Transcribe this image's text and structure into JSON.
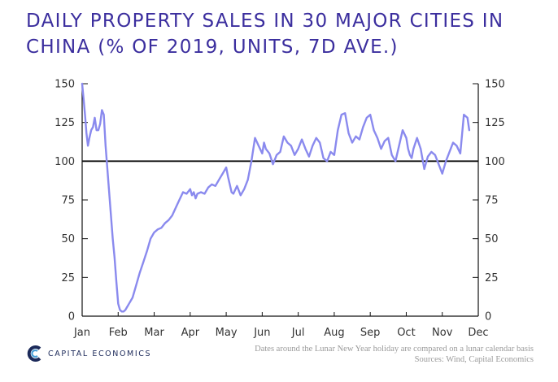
{
  "chart_data": {
    "type": "line",
    "title": "DAILY PROPERTY SALES IN 30 MAJOR CITIES IN CHINA (% OF 2019, UNITS, 7D AVE.)",
    "xlabel": "",
    "ylabel": "",
    "categories": [
      "Jan",
      "Feb",
      "Mar",
      "Apr",
      "May",
      "Jun",
      "Jul",
      "Aug",
      "Sep",
      "Oct",
      "Nov",
      "Dec"
    ],
    "ylim": [
      0,
      150
    ],
    "yticks": [
      0,
      25,
      50,
      75,
      100,
      125,
      150
    ],
    "xlim": [
      0,
      11
    ],
    "reference_line": 100,
    "series": [
      {
        "name": "Daily property sales (% of 2019)",
        "color": "#8a8aee",
        "x": [
          0.0,
          0.04,
          0.08,
          0.12,
          0.16,
          0.2,
          0.25,
          0.3,
          0.35,
          0.4,
          0.45,
          0.5,
          0.55,
          0.6,
          0.65,
          0.7,
          0.75,
          0.8,
          0.85,
          0.9,
          0.95,
          1.0,
          1.05,
          1.1,
          1.15,
          1.2,
          1.25,
          1.3,
          1.4,
          1.5,
          1.6,
          1.7,
          1.8,
          1.9,
          2.0,
          2.1,
          2.2,
          2.3,
          2.4,
          2.5,
          2.6,
          2.7,
          2.8,
          2.9,
          3.0,
          3.05,
          3.1,
          3.15,
          3.2,
          3.3,
          3.4,
          3.5,
          3.6,
          3.7,
          3.8,
          3.9,
          4.0,
          4.05,
          4.1,
          4.15,
          4.2,
          4.3,
          4.4,
          4.5,
          4.6,
          4.7,
          4.8,
          4.9,
          5.0,
          5.05,
          5.1,
          5.2,
          5.3,
          5.4,
          5.5,
          5.6,
          5.7,
          5.8,
          5.9,
          6.0,
          6.1,
          6.2,
          6.3,
          6.4,
          6.5,
          6.6,
          6.7,
          6.8,
          6.9,
          7.0,
          7.1,
          7.2,
          7.3,
          7.4,
          7.5,
          7.6,
          7.7,
          7.8,
          7.9,
          8.0,
          8.1,
          8.2,
          8.3,
          8.4,
          8.5,
          8.6,
          8.7,
          8.8,
          8.9,
          9.0,
          9.05,
          9.1,
          9.15,
          9.2,
          9.3,
          9.4,
          9.5,
          9.6,
          9.7,
          9.8,
          9.9,
          10.0,
          10.1,
          10.2,
          10.3,
          10.4,
          10.5,
          10.6,
          10.7,
          10.75
        ],
        "values": [
          150,
          140,
          130,
          118,
          110,
          115,
          120,
          122,
          128,
          120,
          120,
          124,
          133,
          130,
          110,
          95,
          80,
          65,
          50,
          38,
          22,
          8,
          4,
          3,
          3,
          4,
          6,
          8,
          12,
          20,
          28,
          35,
          42,
          50,
          54,
          56,
          57,
          60,
          62,
          65,
          70,
          75,
          80,
          79,
          82,
          78,
          80,
          76,
          79,
          80,
          79,
          83,
          85,
          84,
          88,
          92,
          96,
          90,
          85,
          80,
          79,
          84,
          78,
          82,
          88,
          100,
          115,
          110,
          105,
          112,
          108,
          105,
          98,
          104,
          106,
          116,
          112,
          110,
          104,
          108,
          114,
          108,
          103,
          110,
          115,
          112,
          102,
          100,
          106,
          104,
          120,
          130,
          131,
          118,
          112,
          116,
          114,
          122,
          128,
          130,
          120,
          115,
          108,
          113,
          115,
          104,
          100,
          110,
          120,
          115,
          108,
          104,
          102,
          108,
          115,
          108,
          95,
          103,
          106,
          104,
          98,
          92,
          100,
          106,
          112,
          110,
          105,
          130,
          128,
          120
        ]
      }
    ]
  },
  "footer": {
    "brand": "CAPITAL ECONOMICS",
    "note": "Dates around the Lunar New Year holiday are compared on a lunar calendar basis",
    "sources": "Sources: Wind, Capital Economics"
  },
  "colors": {
    "title": "#3b2e9e",
    "series": "#8a8aee",
    "axis": "#111111"
  }
}
